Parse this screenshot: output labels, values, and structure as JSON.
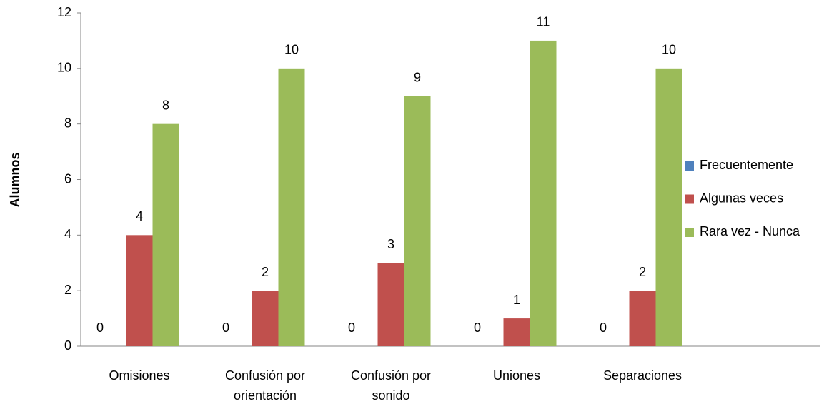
{
  "chart_data": {
    "type": "bar",
    "y_label": "Alumnos",
    "categories": [
      "Omisiones",
      "Confusión por orientación",
      "Confusión por sonido",
      "Uniones",
      "Separaciones"
    ],
    "series": [
      {
        "name": "Frecuentemente",
        "color": "#4f81bd",
        "values": [
          0,
          0,
          0,
          0,
          0
        ]
      },
      {
        "name": "Algunas veces",
        "color": "#c0504d",
        "values": [
          4,
          2,
          3,
          1,
          2
        ]
      },
      {
        "name": "Rara vez - Nunca",
        "color": "#9bbb59",
        "values": [
          8,
          10,
          9,
          11,
          10
        ]
      }
    ],
    "ylim": [
      0,
      12
    ],
    "yticks": [
      0,
      2,
      4,
      6,
      8,
      10,
      12
    ],
    "grid": false,
    "legend": "right"
  }
}
